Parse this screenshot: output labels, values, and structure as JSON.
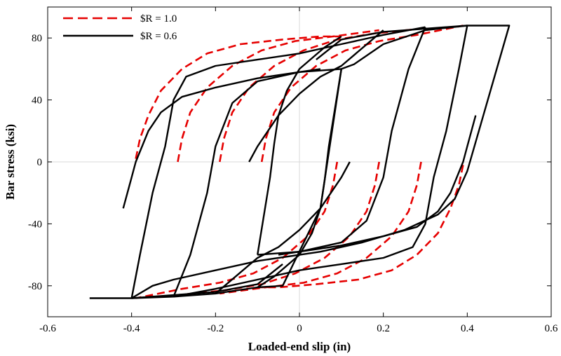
{
  "chart_data": {
    "type": "line",
    "title": "",
    "xlabel": "Loaded-end slip (in)",
    "ylabel": "Bar stress (ksi)",
    "xlim": [
      -0.6,
      0.6
    ],
    "ylim": [
      -100,
      100
    ],
    "xticks": [
      -0.6,
      -0.4,
      -0.2,
      0,
      0.2,
      0.4,
      0.6
    ],
    "xtick_labels": [
      "-0.6",
      "-0.4",
      "-0.2",
      "0",
      "0.2",
      "0.4",
      "0.6"
    ],
    "yticks": [
      -80,
      -40,
      0,
      40,
      80
    ],
    "ytick_labels": [
      "-80",
      "-40",
      "0",
      "40",
      "80"
    ],
    "grid": "zero-lines",
    "legend": {
      "position": "top-left",
      "entries": [
        {
          "label": "$R = 1.0",
          "color": "#e60000",
          "style": "dashed"
        },
        {
          "label": "$R = 0.6",
          "color": "#000000",
          "style": "solid"
        }
      ]
    },
    "series": [
      {
        "name": "$R = 1.0",
        "color": "#e60000",
        "style": "dashed",
        "segments": [
          [
            [
              -0.39,
              2
            ],
            [
              -0.38,
              15
            ],
            [
              -0.36,
              30
            ],
            [
              -0.33,
              46
            ],
            [
              -0.28,
              60
            ],
            [
              -0.22,
              70
            ],
            [
              -0.14,
              76
            ],
            [
              -0.04,
              79
            ],
            [
              0.05,
              81
            ],
            [
              0.1,
              81
            ]
          ],
          [
            [
              -0.29,
              0
            ],
            [
              -0.28,
              15
            ],
            [
              -0.26,
              32
            ],
            [
              -0.22,
              48
            ],
            [
              -0.16,
              62
            ],
            [
              -0.09,
              72
            ],
            [
              -0.01,
              78
            ],
            [
              0.08,
              81
            ],
            [
              0.19,
              85
            ]
          ],
          [
            [
              -0.19,
              0
            ],
            [
              -0.18,
              15
            ],
            [
              -0.16,
              32
            ],
            [
              -0.12,
              48
            ],
            [
              -0.06,
              62
            ],
            [
              0.01,
              72
            ],
            [
              0.09,
              79
            ],
            [
              0.18,
              83
            ],
            [
              0.29,
              86
            ]
          ],
          [
            [
              -0.09,
              0
            ],
            [
              -0.08,
              15
            ],
            [
              -0.06,
              32
            ],
            [
              -0.02,
              48
            ],
            [
              0.04,
              62
            ],
            [
              0.11,
              72
            ],
            [
              0.19,
              78
            ],
            [
              0.28,
              82
            ],
            [
              0.39,
              88
            ]
          ],
          [
            [
              0.39,
              -2
            ],
            [
              0.38,
              -15
            ],
            [
              0.36,
              -30
            ],
            [
              0.33,
              -46
            ],
            [
              0.28,
              -60
            ],
            [
              0.22,
              -70
            ],
            [
              0.14,
              -76
            ],
            [
              0.04,
              -79
            ],
            [
              -0.05,
              -81
            ],
            [
              -0.1,
              -81
            ]
          ],
          [
            [
              0.29,
              0
            ],
            [
              0.28,
              -15
            ],
            [
              0.26,
              -32
            ],
            [
              0.22,
              -48
            ],
            [
              0.16,
              -62
            ],
            [
              0.09,
              -72
            ],
            [
              0.01,
              -78
            ],
            [
              -0.08,
              -81
            ],
            [
              -0.19,
              -85
            ]
          ],
          [
            [
              0.19,
              0
            ],
            [
              0.18,
              -15
            ],
            [
              0.16,
              -32
            ],
            [
              0.12,
              -48
            ],
            [
              0.06,
              -62
            ],
            [
              -0.01,
              -72
            ],
            [
              -0.09,
              -79
            ],
            [
              -0.18,
              -83
            ],
            [
              -0.29,
              -86
            ]
          ],
          [
            [
              0.09,
              0
            ],
            [
              0.08,
              -15
            ],
            [
              0.06,
              -32
            ],
            [
              0.02,
              -48
            ],
            [
              -0.04,
              -62
            ],
            [
              -0.11,
              -72
            ],
            [
              -0.19,
              -78
            ],
            [
              -0.28,
              -82
            ],
            [
              -0.39,
              -88
            ]
          ]
        ]
      },
      {
        "name": "$R = 0.6",
        "color": "#000000",
        "style": "solid",
        "segments": [
          [
            [
              -0.5,
              -88
            ],
            [
              -0.4,
              -88
            ],
            [
              -0.3,
              -87
            ],
            [
              -0.2,
              -85
            ],
            [
              -0.1,
              -81
            ],
            [
              -0.04,
              -80
            ],
            [
              0.05,
              -30
            ],
            [
              0.1,
              60
            ],
            [
              0.13,
              63
            ],
            [
              0.2,
              76
            ],
            [
              0.3,
              85
            ],
            [
              0.4,
              88
            ],
            [
              0.5,
              88
            ],
            [
              0.4,
              -6
            ],
            [
              0.37,
              -24
            ],
            [
              0.33,
              -34
            ],
            [
              0.25,
              -44
            ],
            [
              0.15,
              -52
            ],
            [
              0.05,
              -58
            ],
            [
              -0.1,
              -64
            ],
            [
              -0.2,
              -70
            ],
            [
              -0.3,
              -76
            ],
            [
              -0.35,
              -80
            ],
            [
              -0.4,
              -88
            ],
            [
              -0.5,
              -88
            ]
          ],
          [
            [
              0.04,
              66
            ],
            [
              0.1,
              79
            ],
            [
              0.2,
              84
            ],
            [
              0.3,
              86
            ],
            [
              0.4,
              88
            ]
          ],
          [
            [
              -0.04,
              -66
            ],
            [
              -0.1,
              -79
            ],
            [
              -0.2,
              -84
            ],
            [
              -0.3,
              -86
            ],
            [
              -0.4,
              -88
            ]
          ],
          [
            [
              -0.1,
              -81
            ],
            [
              -0.06,
              -74
            ],
            [
              0.0,
              -60
            ],
            [
              0.03,
              -46
            ],
            [
              0.05,
              -30
            ],
            [
              0.06,
              -12
            ],
            [
              0.07,
              10
            ],
            [
              0.1,
              60
            ]
          ],
          [
            [
              0.1,
              81
            ],
            [
              0.06,
              74
            ],
            [
              0.0,
              60
            ],
            [
              -0.03,
              46
            ],
            [
              -0.05,
              30
            ],
            [
              -0.06,
              12
            ],
            [
              -0.07,
              -10
            ],
            [
              -0.1,
              -60
            ]
          ],
          [
            [
              -0.2,
              -85
            ],
            [
              -0.1,
              -62
            ],
            [
              -0.05,
              -55
            ],
            [
              0.0,
              -44
            ],
            [
              0.05,
              -30
            ],
            [
              0.1,
              -10
            ],
            [
              0.12,
              0
            ]
          ],
          [
            [
              0.2,
              85
            ],
            [
              0.1,
              62
            ],
            [
              0.05,
              55
            ],
            [
              0.0,
              44
            ],
            [
              -0.05,
              30
            ],
            [
              -0.1,
              10
            ],
            [
              -0.12,
              0
            ]
          ],
          [
            [
              0.4,
              88
            ],
            [
              0.38,
              60
            ],
            [
              0.35,
              20
            ],
            [
              0.32,
              -10
            ],
            [
              0.3,
              -40
            ],
            [
              0.27,
              -55
            ],
            [
              0.2,
              -62
            ],
            [
              0.1,
              -66
            ],
            [
              0.0,
              -70
            ],
            [
              -0.1,
              -76
            ],
            [
              -0.2,
              -82
            ],
            [
              -0.3,
              -87
            ]
          ],
          [
            [
              -0.4,
              -88
            ],
            [
              -0.38,
              -60
            ],
            [
              -0.35,
              -20
            ],
            [
              -0.32,
              10
            ],
            [
              -0.3,
              40
            ],
            [
              -0.27,
              55
            ],
            [
              -0.2,
              62
            ],
            [
              -0.1,
              66
            ],
            [
              0.0,
              70
            ],
            [
              0.1,
              76
            ],
            [
              0.2,
              82
            ],
            [
              0.3,
              87
            ]
          ],
          [
            [
              -0.42,
              -30
            ],
            [
              -0.4,
              -10
            ],
            [
              -0.39,
              0
            ],
            [
              -0.36,
              20
            ],
            [
              -0.33,
              32
            ],
            [
              -0.28,
              42
            ],
            [
              -0.2,
              48
            ],
            [
              -0.1,
              54
            ],
            [
              0.0,
              58
            ],
            [
              0.1,
              60
            ]
          ],
          [
            [
              0.42,
              30
            ],
            [
              0.4,
              10
            ],
            [
              0.39,
              0
            ],
            [
              0.36,
              -20
            ],
            [
              0.33,
              -32
            ],
            [
              0.28,
              -42
            ],
            [
              0.2,
              -48
            ],
            [
              0.1,
              -54
            ],
            [
              0.0,
              -58
            ],
            [
              -0.1,
              -60
            ]
          ],
          [
            [
              -0.3,
              -87
            ],
            [
              -0.26,
              -60
            ],
            [
              -0.22,
              -20
            ],
            [
              -0.2,
              10
            ],
            [
              -0.16,
              38
            ],
            [
              -0.1,
              52
            ],
            [
              0.0,
              58
            ],
            [
              0.05,
              60
            ]
          ],
          [
            [
              0.3,
              87
            ],
            [
              0.26,
              60
            ],
            [
              0.22,
              20
            ],
            [
              0.2,
              -10
            ],
            [
              0.16,
              -38
            ],
            [
              0.1,
              -52
            ],
            [
              0.0,
              -58
            ],
            [
              -0.05,
              -60
            ]
          ]
        ]
      }
    ]
  }
}
